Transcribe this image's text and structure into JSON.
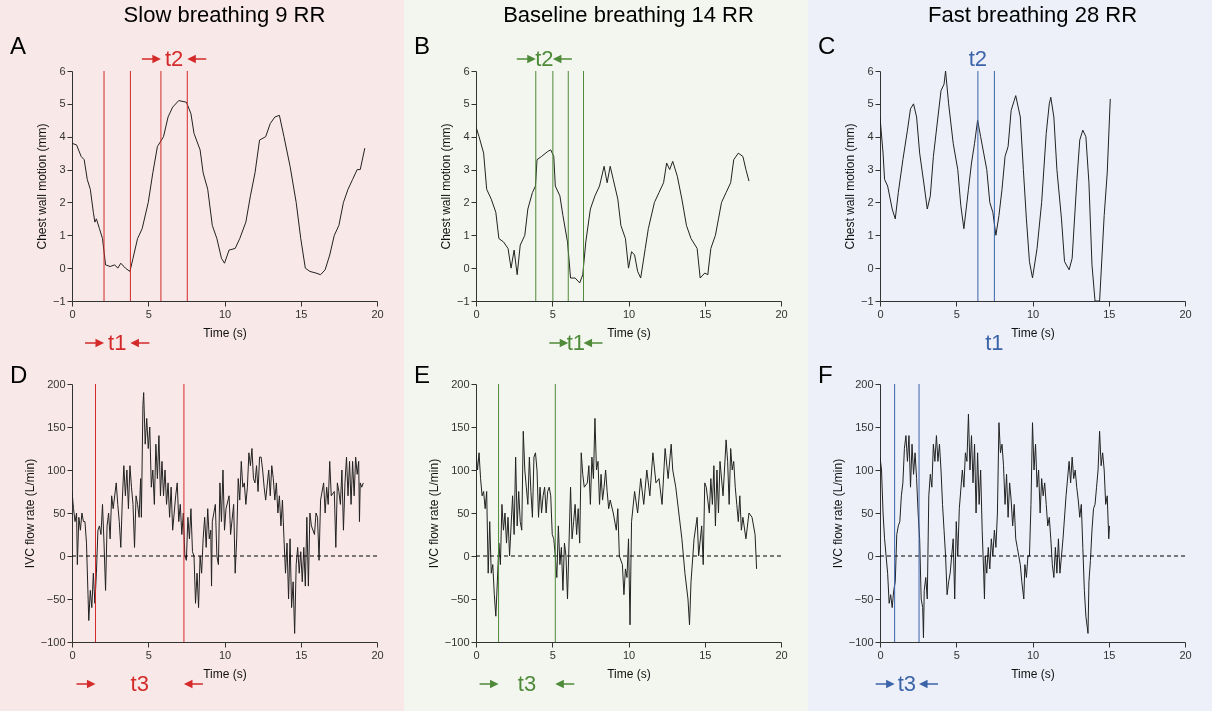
{
  "chart_data": [
    {
      "type": "line",
      "title": "Slow breathing 9 RR",
      "xlabel": "Time (s)",
      "ylabel": "Chest wall motion (mm)",
      "xlim": [
        0,
        20
      ],
      "xticks": [
        0,
        5,
        10,
        15,
        20
      ],
      "ylim": [
        -1,
        6
      ],
      "yticks": [
        -1,
        0,
        1,
        2,
        3,
        4,
        5,
        6
      ],
      "series": [
        {
          "color": "#222222",
          "x": [
            0,
            0.3,
            0.6,
            0.8,
            1.0,
            1.2,
            1.4,
            1.5,
            1.6,
            1.8,
            2.0,
            2.2,
            2.5,
            2.8,
            3.0,
            3.2,
            3.5,
            3.8,
            4.0,
            4.3,
            4.6,
            5.0,
            5.3,
            5.6,
            6.0,
            6.3,
            6.6,
            7.0,
            7.5,
            7.8,
            8.0,
            8.4,
            8.6,
            8.9,
            9.2,
            9.5,
            9.8,
            10.0,
            10.3,
            10.7,
            11.0,
            11.4,
            11.7,
            12.0,
            12.3,
            12.7,
            13.0,
            13.3,
            13.6,
            13.9,
            14.3,
            14.7,
            15.0,
            15.3,
            15.6,
            16.0,
            16.3,
            16.6,
            16.9,
            17.2,
            17.5,
            17.8,
            18.1,
            18.4,
            18.7,
            18.9,
            19.2
          ],
          "values": [
            3.8,
            3.75,
            3.4,
            3.3,
            2.7,
            2.4,
            1.7,
            1.4,
            1.5,
            1.2,
            0.9,
            0.1,
            0.05,
            0.1,
            0.0,
            0.15,
            0.0,
            -0.1,
            0.3,
            0.9,
            1.2,
            2.0,
            2.9,
            3.7,
            4.0,
            4.6,
            4.9,
            5.1,
            5.05,
            4.7,
            4.1,
            3.6,
            2.9,
            2.4,
            1.3,
            0.9,
            0.3,
            0.15,
            0.55,
            0.6,
            0.9,
            1.4,
            2.2,
            2.9,
            3.9,
            4.0,
            4.4,
            4.6,
            4.65,
            4.0,
            3.1,
            2.0,
            0.9,
            0.0,
            -0.1,
            -0.15,
            -0.2,
            -0.05,
            0.4,
            1.0,
            1.3,
            2.0,
            2.4,
            2.7,
            3.0,
            3.0,
            3.65
          ]
        }
      ],
      "ref_lines": [
        {
          "axis": "x",
          "value": 2.1,
          "label": "t1",
          "color": "#d42a2a"
        },
        {
          "axis": "x",
          "value": 3.83,
          "color": "#d42a2a"
        },
        {
          "axis": "x",
          "value": 5.83,
          "label": "t2",
          "color": "#d42a2a"
        },
        {
          "axis": "x",
          "value": 7.56,
          "color": "#d42a2a"
        }
      ],
      "annotations": [
        "A"
      ]
    },
    {
      "type": "line",
      "title": "Baseline breathing 14  RR",
      "xlabel": "Time (s)",
      "ylabel": "Chest wall motion (mm)",
      "xlim": [
        0,
        20
      ],
      "xticks": [
        0,
        5,
        10,
        15,
        20
      ],
      "ylim": [
        -1,
        6
      ],
      "yticks": [
        -1,
        0,
        1,
        2,
        3,
        4,
        5,
        6
      ],
      "series": [
        {
          "color": "#222222",
          "x": [
            0,
            0.2,
            0.5,
            0.7,
            1.0,
            1.3,
            1.5,
            1.8,
            2.1,
            2.3,
            2.5,
            2.7,
            2.9,
            3.2,
            3.4,
            3.7,
            3.9,
            4.0,
            4.3,
            4.7,
            4.9,
            5.1,
            5.2,
            5.5,
            5.7,
            6.0,
            6.2,
            6.5,
            6.8,
            7.0,
            7.2,
            7.5,
            7.8,
            8.1,
            8.4,
            8.6,
            8.8,
            9.0,
            9.3,
            9.5,
            9.8,
            10.0,
            10.2,
            10.4,
            10.6,
            10.8,
            11.1,
            11.3,
            11.7,
            12.0,
            12.3,
            12.5,
            12.7,
            12.9,
            13.2,
            13.5,
            13.8,
            14.1,
            14.5,
            14.7,
            15.0,
            15.2,
            15.4,
            15.7,
            15.9,
            16.1,
            16.4,
            16.7,
            16.9,
            17.2,
            17.5,
            17.7,
            17.9
          ],
          "values": [
            4.3,
            4.0,
            3.5,
            2.4,
            2.1,
            1.7,
            0.9,
            0.8,
            0.6,
            0.0,
            0.55,
            -0.2,
            0.7,
            1.0,
            1.8,
            2.3,
            2.5,
            3.3,
            3.4,
            3.55,
            3.6,
            3.4,
            2.5,
            2.2,
            1.6,
            0.8,
            -0.3,
            -0.3,
            -0.45,
            -0.2,
            0.8,
            1.8,
            2.2,
            2.5,
            3.1,
            2.6,
            3.1,
            2.7,
            2.1,
            1.3,
            0.9,
            0.0,
            0.5,
            0.4,
            -0.1,
            -0.3,
            0.6,
            1.2,
            2.0,
            2.3,
            2.6,
            3.2,
            3.0,
            3.25,
            2.8,
            2.1,
            1.3,
            0.9,
            0.6,
            -0.3,
            -0.15,
            -0.2,
            0.6,
            1.0,
            1.5,
            2.0,
            2.3,
            2.6,
            3.3,
            3.5,
            3.4,
            3.0,
            2.65
          ]
        }
      ],
      "ref_lines": [
        {
          "axis": "x",
          "value": 3.92,
          "label": "t2",
          "color": "#4e8a3a"
        },
        {
          "axis": "x",
          "value": 5.04,
          "color": "#4e8a3a"
        },
        {
          "axis": "x",
          "value": 6.05,
          "label": "t1",
          "color": "#4e8a3a"
        },
        {
          "axis": "x",
          "value": 7.05,
          "color": "#4e8a3a"
        }
      ],
      "annotations": [
        "B"
      ]
    },
    {
      "type": "line",
      "title": "Fast breathing 28 RR",
      "xlabel": "Time (s)",
      "ylabel": "Chest wall motion (mm)",
      "xlim": [
        0,
        20
      ],
      "xticks": [
        0,
        5,
        10,
        15,
        20
      ],
      "ylim": [
        -1,
        6
      ],
      "yticks": [
        -1,
        0,
        1,
        2,
        3,
        4,
        5,
        6
      ],
      "series": [
        {
          "color": "#222222",
          "x": [
            0,
            0.2,
            0.3,
            0.5,
            0.8,
            1.0,
            1.2,
            1.5,
            1.8,
            2.0,
            2.2,
            2.4,
            2.6,
            2.9,
            3.1,
            3.3,
            3.5,
            3.8,
            4.0,
            4.2,
            4.3,
            4.5,
            4.8,
            5.1,
            5.3,
            5.5,
            5.8,
            6.0,
            6.2,
            6.4,
            6.6,
            6.8,
            7.0,
            7.2,
            7.4,
            7.6,
            7.8,
            8.0,
            8.2,
            8.4,
            8.6,
            8.8,
            8.9,
            9.2,
            9.4,
            9.6,
            9.8,
            10.0,
            10.3,
            10.6,
            10.9,
            11.1,
            11.2,
            11.4,
            11.6,
            11.9,
            12.1,
            12.4,
            12.6,
            12.9,
            13.1,
            13.3,
            13.5,
            13.7,
            13.9,
            14.1,
            14.4,
            14.7,
            14.9,
            15.1
          ],
          "values": [
            4.6,
            3.5,
            2.7,
            2.5,
            1.8,
            1.5,
            2.3,
            3.3,
            4.2,
            4.85,
            5.0,
            4.6,
            3.5,
            2.5,
            1.8,
            2.2,
            3.4,
            4.6,
            5.4,
            5.6,
            6.0,
            5.0,
            3.8,
            3.0,
            1.9,
            1.2,
            2.4,
            3.2,
            3.8,
            4.5,
            4.0,
            3.5,
            3.0,
            2.0,
            1.7,
            1.0,
            1.6,
            2.4,
            3.4,
            3.7,
            4.8,
            5.1,
            5.25,
            4.6,
            3.0,
            1.5,
            0.2,
            -0.3,
            0.6,
            2.0,
            4.1,
            5.0,
            5.2,
            4.6,
            3.0,
            1.5,
            0.2,
            -0.05,
            0.3,
            2.6,
            3.9,
            4.2,
            4.0,
            2.6,
            0.1,
            -1.0,
            -1.0,
            1.6,
            2.9,
            5.15
          ]
        }
      ],
      "ref_lines": [
        {
          "axis": "x",
          "value": 6.42,
          "label": "t2",
          "color": "#3c64a8"
        },
        {
          "axis": "x",
          "value": 7.5,
          "label": "t1",
          "color": "#3c64a8"
        }
      ],
      "annotations": [
        "C"
      ]
    },
    {
      "type": "line",
      "xlabel": "Time (s)",
      "ylabel": "IVC flow rate (L/min)",
      "xlim": [
        0,
        20
      ],
      "xticks": [
        0,
        5,
        10,
        15,
        20
      ],
      "ylim": [
        -100,
        200
      ],
      "yticks": [
        -100,
        -50,
        0,
        50,
        100,
        150,
        200
      ],
      "series": [
        {
          "color": "#222222",
          "x": [
            0,
            0.1,
            0.2,
            0.3,
            0.35,
            0.45,
            0.55,
            0.65,
            0.75,
            0.85,
            0.95,
            1.05,
            1.1,
            1.2,
            1.3,
            1.4,
            1.5,
            1.6,
            1.7,
            1.8,
            1.9,
            2.0,
            2.1,
            2.2,
            2.3,
            2.4,
            2.5,
            2.6,
            2.7,
            2.9,
            3.0,
            3.1,
            3.2,
            3.3,
            3.4,
            3.5,
            3.6,
            3.7,
            3.8,
            3.9,
            4.0,
            4.1,
            4.2,
            4.3,
            4.4,
            4.5,
            4.55,
            4.65,
            4.7,
            4.8,
            4.9,
            5.0,
            5.1,
            5.2,
            5.3,
            5.4,
            5.5,
            5.6,
            5.7,
            5.8,
            5.9,
            6.0,
            6.1,
            6.2,
            6.3,
            6.4,
            6.5,
            6.6,
            6.8,
            6.9,
            7.0,
            7.1,
            7.2,
            7.3,
            7.4,
            7.5,
            7.6,
            7.7,
            7.8,
            7.9,
            8.0,
            8.1,
            8.2,
            8.3,
            8.4,
            8.5,
            8.6,
            8.7,
            8.8,
            8.9,
            9.0,
            9.1,
            9.15,
            9.2,
            9.4,
            9.5,
            9.6,
            9.7,
            9.8,
            9.9,
            10.0,
            10.1,
            10.3,
            10.4,
            10.6,
            10.7,
            10.8,
            10.9,
            11.0,
            11.1,
            11.2,
            11.3,
            11.4,
            11.5,
            11.6,
            11.7,
            11.8,
            11.9,
            12.0,
            12.1,
            12.2,
            12.3,
            12.4,
            12.5,
            12.6,
            12.7,
            12.9,
            13.0,
            13.1,
            13.2,
            13.3,
            13.4,
            13.5,
            13.6,
            13.7,
            13.8,
            13.9,
            14.0,
            14.1,
            14.2,
            14.3,
            14.4,
            14.5,
            14.6,
            14.7,
            14.8,
            14.9,
            15.0,
            15.1,
            15.2,
            15.3,
            15.4,
            15.5,
            15.6,
            15.7,
            15.9,
            16.0,
            16.1,
            16.2,
            16.3,
            16.5,
            16.6,
            16.7,
            16.8,
            16.9,
            17.0,
            17.2,
            17.3,
            17.4,
            17.5,
            17.6,
            17.7,
            17.8,
            17.9,
            18.0,
            18.1,
            18.2,
            18.3,
            18.4,
            18.5,
            18.6,
            18.7,
            18.8,
            18.85,
            18.9,
            19.0,
            19.1
          ],
          "values": [
            75,
            55,
            40,
            50,
            -10,
            45,
            30,
            50,
            40,
            40,
            15,
            -45,
            -75,
            -40,
            -60,
            -20,
            -55,
            -20,
            30,
            35,
            25,
            60,
            15,
            -40,
            35,
            50,
            20,
            70,
            55,
            85,
            60,
            40,
            10,
            65,
            105,
            70,
            100,
            55,
            105,
            80,
            60,
            10,
            70,
            60,
            45,
            90,
            45,
            175,
            190,
            130,
            160,
            125,
            150,
            80,
            100,
            60,
            130,
            90,
            140,
            70,
            110,
            70,
            100,
            60,
            85,
            45,
            80,
            30,
            70,
            85,
            40,
            60,
            25,
            50,
            0,
            -5,
            45,
            20,
            55,
            5,
            0,
            -55,
            -20,
            -60,
            0,
            -20,
            20,
            45,
            10,
            55,
            20,
            30,
            -35,
            40,
            60,
            0,
            -10,
            85,
            40,
            100,
            30,
            55,
            70,
            25,
            60,
            -20,
            20,
            90,
            65,
            110,
            80,
            85,
            60,
            80,
            120,
            105,
            125,
            90,
            85,
            105,
            75,
            115,
            115,
            100,
            80,
            65,
            100,
            70,
            105,
            90,
            65,
            85,
            50,
            70,
            35,
            65,
            20,
            -20,
            15,
            -50,
            20,
            -60,
            -30,
            -90,
            -10,
            10,
            -20,
            5,
            -30,
            10,
            -35,
            45,
            -35,
            50,
            35,
            25,
            50,
            45,
            -5,
            65,
            85,
            50,
            80,
            60,
            110,
            70,
            75,
            10,
            85,
            75,
            60,
            100,
            30,
            85,
            115,
            70,
            110,
            60,
            110,
            70,
            115,
            95,
            110,
            40,
            85,
            80,
            85
          ]
        }
      ],
      "ref_lines": [
        {
          "axis": "y",
          "value": 0,
          "color": "#000000",
          "line_style": "dashed"
        },
        {
          "axis": "x",
          "value": 1.54,
          "label": "t3",
          "color": "#d42a2a"
        },
        {
          "axis": "x",
          "value": 7.34,
          "color": "#d42a2a"
        }
      ],
      "annotations": [
        "D"
      ]
    },
    {
      "type": "line",
      "xlabel": "Time (s)",
      "ylabel": "IVC flow rate (L/min)",
      "xlim": [
        0,
        20
      ],
      "xticks": [
        0,
        5,
        10,
        15,
        20
      ],
      "ylim": [
        -100,
        200
      ],
      "yticks": [
        -100,
        -50,
        0,
        50,
        100,
        150,
        200
      ],
      "series": [
        {
          "color": "#222222",
          "x": [
            0,
            0.1,
            0.2,
            0.3,
            0.4,
            0.5,
            0.6,
            0.7,
            0.8,
            0.9,
            1.0,
            1.1,
            1.2,
            1.3,
            1.4,
            1.5,
            1.6,
            1.7,
            1.8,
            1.9,
            2.0,
            2.1,
            2.2,
            2.4,
            2.5,
            2.6,
            2.7,
            2.8,
            2.9,
            3.0,
            3.1,
            3.2,
            3.3,
            3.4,
            3.5,
            3.6,
            3.7,
            3.8,
            3.9,
            4.0,
            4.1,
            4.2,
            4.3,
            4.4,
            4.5,
            4.6,
            4.7,
            4.8,
            4.9,
            5.0,
            5.1,
            5.2,
            5.3,
            5.4,
            5.5,
            5.6,
            5.7,
            5.8,
            5.9,
            6.0,
            6.2,
            6.3,
            6.4,
            6.5,
            6.6,
            6.7,
            6.8,
            6.9,
            7.0,
            7.1,
            7.3,
            7.4,
            7.5,
            7.6,
            7.7,
            7.8,
            7.9,
            8.0,
            8.1,
            8.2,
            8.3,
            8.4,
            8.5,
            8.6,
            8.7,
            8.8,
            9.0,
            9.2,
            9.3,
            9.4,
            9.6,
            9.7,
            9.8,
            9.9,
            10.0,
            10.1,
            10.2,
            10.4,
            10.6,
            10.8,
            11.0,
            11.2,
            11.4,
            11.6,
            11.8,
            12.0,
            12.2,
            12.4,
            12.6,
            12.8,
            12.9,
            13.1,
            13.3,
            13.5,
            13.7,
            13.9,
            14.0,
            14.1,
            14.3,
            14.5,
            14.6,
            14.8,
            14.9,
            15.0,
            15.1,
            15.3,
            15.4,
            15.5,
            15.6,
            15.7,
            15.8,
            15.9,
            16.0,
            16.2,
            16.4,
            16.5,
            16.6,
            16.7,
            16.8,
            16.9,
            17.0,
            17.1,
            17.2,
            17.3,
            17.4,
            17.5,
            17.7,
            17.9,
            18.1,
            18.3,
            18.4
          ],
          "values": [
            120,
            100,
            120,
            90,
            70,
            75,
            55,
            75,
            -20,
            40,
            -20,
            -10,
            -45,
            -70,
            -30,
            15,
            -10,
            60,
            30,
            50,
            15,
            45,
            0,
            70,
            25,
            115,
            35,
            75,
            40,
            30,
            145,
            100,
            80,
            60,
            115,
            75,
            45,
            115,
            120,
            100,
            45,
            80,
            50,
            70,
            80,
            50,
            75,
            80,
            70,
            25,
            20,
            0,
            -25,
            35,
            -10,
            10,
            -40,
            15,
            0,
            -50,
            80,
            20,
            40,
            60,
            25,
            55,
            15,
            120,
            95,
            80,
            85,
            105,
            60,
            115,
            90,
            160,
            100,
            110,
            60,
            95,
            65,
            80,
            100,
            75,
            55,
            65,
            50,
            30,
            55,
            0,
            -10,
            -45,
            -15,
            -25,
            20,
            -80,
            40,
            75,
            50,
            90,
            60,
            100,
            70,
            120,
            85,
            90,
            60,
            125,
            90,
            130,
            100,
            80,
            50,
            20,
            -20,
            -50,
            -80,
            -30,
            20,
            45,
            0,
            35,
            -10,
            85,
            80,
            50,
            90,
            60,
            105,
            35,
            100,
            50,
            110,
            70,
            135,
            110,
            60,
            125,
            100,
            110,
            80,
            60,
            40,
            70,
            30,
            45,
            20,
            50,
            45,
            25,
            -15
          ]
        }
      ],
      "ref_lines": [
        {
          "axis": "y",
          "value": 0,
          "color": "#000000",
          "line_style": "dashed"
        },
        {
          "axis": "x",
          "value": 1.48,
          "label": "t3",
          "color": "#4e8a3a"
        },
        {
          "axis": "x",
          "value": 5.2,
          "color": "#4e8a3a"
        }
      ],
      "annotations": [
        "E"
      ]
    },
    {
      "type": "line",
      "xlabel": "Time (s)",
      "ylabel": "IVC flow rate (L/min)",
      "xlim": [
        0,
        20
      ],
      "xticks": [
        0,
        5,
        10,
        15,
        20
      ],
      "ylim": [
        -100,
        200
      ],
      "yticks": [
        -100,
        -50,
        0,
        50,
        100,
        150,
        200
      ],
      "series": [
        {
          "color": "#222222",
          "x": [
            0,
            0.1,
            0.2,
            0.3,
            0.5,
            0.6,
            0.7,
            0.8,
            0.9,
            1.0,
            1.1,
            1.2,
            1.3,
            1.4,
            1.5,
            1.6,
            1.7,
            1.8,
            1.9,
            2.0,
            2.1,
            2.2,
            2.3,
            2.4,
            2.5,
            2.6,
            2.7,
            2.8,
            2.85,
            2.9,
            3.0,
            3.1,
            3.2,
            3.3,
            3.4,
            3.5,
            3.6,
            3.7,
            3.8,
            3.9,
            4.0,
            4.1,
            4.2,
            4.3,
            4.4,
            4.5,
            4.6,
            4.7,
            4.8,
            4.9,
            5.0,
            5.1,
            5.2,
            5.4,
            5.5,
            5.6,
            5.7,
            5.8,
            5.9,
            6.0,
            6.1,
            6.2,
            6.3,
            6.4,
            6.5,
            6.6,
            6.7,
            6.8,
            6.85,
            6.9,
            7.0,
            7.1,
            7.2,
            7.3,
            7.4,
            7.5,
            7.6,
            7.7,
            7.8,
            7.9,
            8.0,
            8.1,
            8.2,
            8.3,
            8.4,
            8.5,
            8.6,
            8.7,
            8.8,
            8.9,
            9.0,
            9.2,
            9.3,
            9.43,
            9.5,
            9.6,
            9.7,
            9.8,
            9.9,
            10.0,
            10.1,
            10.2,
            10.3,
            10.4,
            10.5,
            10.6,
            10.7,
            10.8,
            10.9,
            11.0,
            11.1,
            11.2,
            11.3,
            11.4,
            11.5,
            11.6,
            11.7,
            11.8,
            11.9,
            12.0,
            12.2,
            12.4,
            12.5,
            12.6,
            12.7,
            12.8,
            12.9,
            13.0,
            13.1,
            13.2,
            13.3,
            13.4,
            13.5,
            13.64,
            13.7,
            13.8,
            13.9,
            14.0,
            14.1,
            14.2,
            14.3,
            14.4,
            14.5,
            14.6,
            14.7,
            14.8,
            14.9,
            15.0,
            15.05
          ],
          "values": [
            115,
            100,
            50,
            20,
            -20,
            -55,
            -45,
            -60,
            -40,
            -30,
            25,
            35,
            40,
            70,
            85,
            125,
            140,
            110,
            140,
            80,
            130,
            95,
            120,
            90,
            50,
            20,
            -50,
            -60,
            -95,
            -40,
            -25,
            -50,
            70,
            95,
            80,
            130,
            110,
            140,
            110,
            130,
            100,
            60,
            30,
            0,
            -45,
            -30,
            -20,
            0,
            20,
            -50,
            40,
            0,
            55,
            100,
            80,
            120,
            110,
            165,
            100,
            140,
            85,
            130,
            50,
            120,
            60,
            100,
            30,
            -20,
            -50,
            0,
            -20,
            10,
            -15,
            20,
            0,
            30,
            10,
            50,
            155,
            120,
            130,
            105,
            60,
            95,
            45,
            85,
            65,
            35,
            60,
            20,
            10,
            -10,
            -30,
            -50,
            -10,
            -25,
            0,
            0,
            60,
            155,
            100,
            130,
            80,
            100,
            50,
            90,
            70,
            85,
            60,
            35,
            45,
            20,
            -10,
            -25,
            10,
            -20,
            20,
            -20,
            0,
            20,
            70,
            110,
            85,
            115,
            90,
            100,
            80,
            65,
            45,
            60,
            10,
            -40,
            -70,
            -90,
            -30,
            -5,
            30,
            55,
            60,
            80,
            100,
            145,
            105,
            120,
            100,
            60,
            70,
            20,
            35
          ]
        }
      ],
      "ref_lines": [
        {
          "axis": "y",
          "value": 0,
          "color": "#000000",
          "line_style": "dashed"
        },
        {
          "axis": "x",
          "value": 0.96,
          "label": "t3",
          "color": "#3c64a8"
        },
        {
          "axis": "x",
          "value": 2.56,
          "color": "#3c64a8"
        }
      ],
      "annotations": [
        "F"
      ]
    }
  ]
}
